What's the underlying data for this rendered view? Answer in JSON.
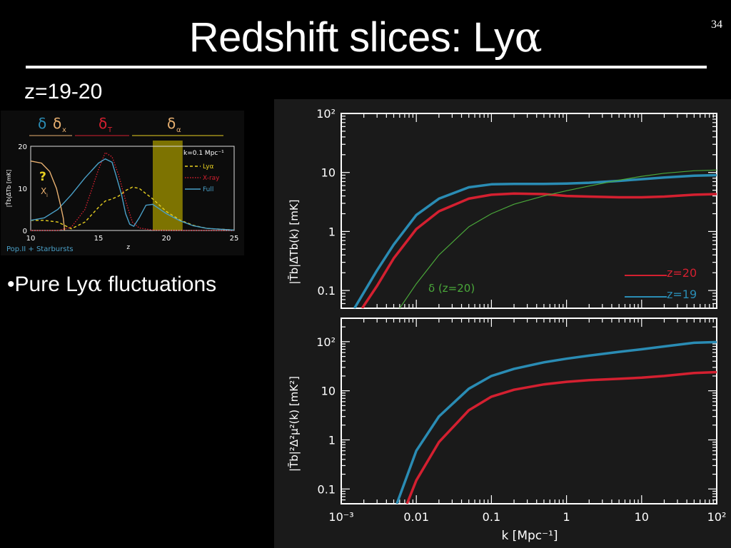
{
  "slide": {
    "title_text": "Redshift slices: Ly",
    "title_alpha": "α",
    "number": "34",
    "subtitle": "z=19-20",
    "bullet_marker": "•",
    "bullet_text": "Pure Ly",
    "bullet_alpha": "α",
    "bullet_suffix": " fluctuations"
  },
  "colors": {
    "red": "#d42030",
    "blue": "#2a8cb4",
    "green": "#4aa83a",
    "inset_tan": "#e8b070",
    "inset_yellow": "#e8d020",
    "inset_band": "#8a7e00",
    "inset_blue": "#4aa0c8"
  },
  "chart_data": [
    {
      "type": "line",
      "panel": "inset",
      "xlabel": "z",
      "ylabel": "|T̄b|Δ̄Tb [mK]",
      "xlim": [
        10,
        25
      ],
      "ylim": [
        0,
        20
      ],
      "xticks": [
        "10",
        "15",
        "20",
        "25"
      ],
      "yticks": [
        "0",
        "10",
        "20"
      ],
      "top_labels": {
        "delta": "δ",
        "delta_x": "δ",
        "x_sub": "x",
        "delta_T": "δ",
        "T_sub": "T",
        "delta_alpha": "δ",
        "alpha_sub": "α"
      },
      "legend_k": "k=0.1 Mpc⁻¹",
      "xi_question": "?",
      "xi_label": "X",
      "xi_sub": "i",
      "footer": "Pop.II + Starbursts",
      "band_z": [
        19,
        21.2
      ],
      "series": [
        {
          "name": "Lyα",
          "style": "dashed",
          "x": [
            10,
            11,
            12,
            13,
            14,
            15,
            15.5,
            16,
            16.5,
            17,
            17.5,
            18,
            19,
            20,
            21,
            22,
            23,
            25
          ],
          "y": [
            2.4,
            2.4,
            2.0,
            0.4,
            2.0,
            5.5,
            7.0,
            7.5,
            8.2,
            9.5,
            10.3,
            10.0,
            7.5,
            4.5,
            2.5,
            1.2,
            0.5,
            0.1
          ]
        },
        {
          "name": "X-ray",
          "style": "dotted",
          "x": [
            10,
            12,
            13,
            14,
            15,
            15.5,
            16,
            16.5,
            17,
            17.5,
            18,
            19,
            20,
            22,
            25
          ],
          "y": [
            0,
            0,
            0.8,
            5.0,
            14.5,
            18.5,
            17.5,
            13.0,
            7.0,
            2.0,
            0.6,
            0.1,
            0,
            0,
            0
          ]
        },
        {
          "name": "Full",
          "style": "solid",
          "x": [
            10,
            11,
            12,
            13,
            14,
            15,
            15.5,
            16,
            16.3,
            16.7,
            17,
            17.3,
            17.6,
            18,
            18.5,
            19,
            20,
            21,
            22,
            23,
            25
          ],
          "y": [
            2.4,
            3.0,
            5.0,
            8.5,
            12.5,
            16.0,
            17.0,
            16.2,
            13.0,
            8.5,
            4.0,
            1.5,
            1.0,
            3.0,
            6.0,
            6.2,
            4.0,
            2.3,
            1.1,
            0.5,
            0.1
          ]
        },
        {
          "name": "x_i",
          "style": "solid",
          "x": [
            10,
            10.8,
            11.4,
            11.9,
            12.2,
            12.4,
            12.5
          ],
          "y": [
            16.5,
            16.0,
            14.0,
            10.0,
            6.0,
            3.0,
            0
          ]
        }
      ]
    },
    {
      "type": "line",
      "panel": "top",
      "scale": "log-log",
      "xlabel": "k [Mpc⁻¹]",
      "ylabel": "|T̄b|Δ̄Tb(k) [mK]",
      "xlim": [
        0.001,
        100
      ],
      "ylim": [
        0.05,
        100
      ],
      "yticks": [
        "0.1",
        "1",
        "10",
        "10²"
      ],
      "annotation": "δ (z=20)",
      "series": [
        {
          "name": "z=20",
          "x": [
            0.0019,
            0.003,
            0.005,
            0.01,
            0.02,
            0.05,
            0.1,
            0.2,
            0.5,
            1,
            2,
            5,
            10,
            20,
            50,
            100
          ],
          "y": [
            0.05,
            0.12,
            0.35,
            1.1,
            2.2,
            3.6,
            4.2,
            4.4,
            4.3,
            4.0,
            3.9,
            3.8,
            3.8,
            3.9,
            4.2,
            4.3
          ]
        },
        {
          "name": "z=19",
          "x": [
            0.0015,
            0.003,
            0.005,
            0.01,
            0.02,
            0.05,
            0.1,
            0.2,
            0.5,
            1,
            2,
            5,
            10,
            20,
            50,
            100
          ],
          "y": [
            0.05,
            0.22,
            0.6,
            1.9,
            3.6,
            5.6,
            6.3,
            6.4,
            6.4,
            6.5,
            6.7,
            7.2,
            7.7,
            8.2,
            8.8,
            9.0
          ]
        },
        {
          "name": "δ (z=20)",
          "x": [
            0.006,
            0.01,
            0.02,
            0.05,
            0.1,
            0.2,
            0.5,
            1,
            2,
            5,
            10,
            20,
            50,
            100
          ],
          "y": [
            0.05,
            0.13,
            0.4,
            1.2,
            2.0,
            2.9,
            4.0,
            4.9,
            5.9,
            7.4,
            8.6,
            9.7,
            10.7,
            11.0
          ]
        }
      ]
    },
    {
      "type": "line",
      "panel": "bottom",
      "scale": "log-log",
      "xlabel": "k [Mpc⁻¹]",
      "ylabel": "|T̄b|²Δ²μ²(k) [mK²]",
      "xlim": [
        0.001,
        100
      ],
      "ylim": [
        0.05,
        300
      ],
      "xticks": [
        "10⁻³",
        "0.01",
        "0.1",
        "1",
        "10",
        "10²"
      ],
      "yticks": [
        "0.1",
        "1",
        "10",
        "10²"
      ],
      "series": [
        {
          "name": "z=20",
          "x": [
            0.0075,
            0.01,
            0.02,
            0.05,
            0.1,
            0.2,
            0.5,
            1,
            2,
            5,
            10,
            20,
            50,
            100
          ],
          "y": [
            0.05,
            0.15,
            0.9,
            4.0,
            7.6,
            10.5,
            13.5,
            15.2,
            16.5,
            17.5,
            18.5,
            20.0,
            23.0,
            24.0
          ]
        },
        {
          "name": "z=19",
          "x": [
            0.0055,
            0.01,
            0.02,
            0.05,
            0.1,
            0.2,
            0.5,
            1,
            2,
            5,
            10,
            20,
            50,
            100
          ],
          "y": [
            0.05,
            0.6,
            3.0,
            11.0,
            20.0,
            28.0,
            38.0,
            45.0,
            52.0,
            62.0,
            70.0,
            80.0,
            95.0,
            98.0
          ]
        }
      ]
    }
  ]
}
